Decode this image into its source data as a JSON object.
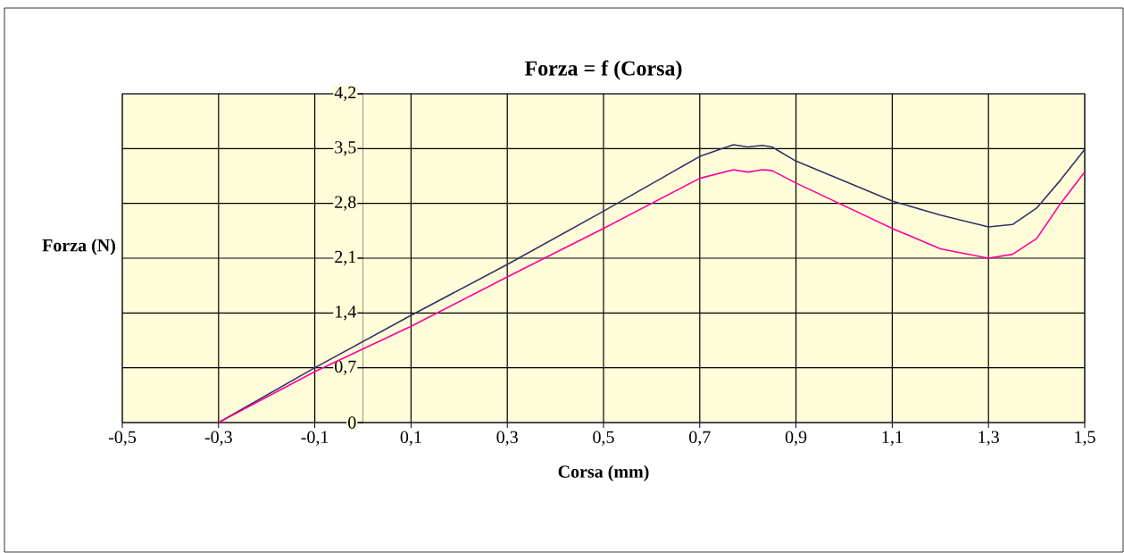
{
  "chart_data": {
    "type": "line",
    "title": "Forza = f (Corsa)",
    "xlabel": "Corsa (mm)",
    "ylabel": "Forza (N)",
    "xlim": [
      -0.5,
      1.5
    ],
    "ylim": [
      0,
      4.2
    ],
    "xticks": [
      {
        "value": -0.5,
        "label": "-0,5"
      },
      {
        "value": -0.3,
        "label": "-0,3"
      },
      {
        "value": -0.1,
        "label": "-0,1"
      },
      {
        "value": 0.1,
        "label": "0,1"
      },
      {
        "value": 0.3,
        "label": "0,3"
      },
      {
        "value": 0.5,
        "label": "0,5"
      },
      {
        "value": 0.7,
        "label": "0,7"
      },
      {
        "value": 0.9,
        "label": "0,9"
      },
      {
        "value": 1.1,
        "label": "1,1"
      },
      {
        "value": 1.3,
        "label": "1,3"
      },
      {
        "value": 1.5,
        "label": "1,5"
      }
    ],
    "yticks": [
      0,
      {
        "value": 0.7,
        "label": "0,7"
      },
      {
        "value": 1.4,
        "label": "1,4"
      },
      {
        "value": 2.1,
        "label": "2,1"
      },
      {
        "value": 2.8,
        "label": "2,8"
      },
      {
        "value": 3.5,
        "label": "3,5"
      },
      {
        "value": 4.2,
        "label": "4,2"
      }
    ],
    "grid": true,
    "marker": "none",
    "line_style": "solid",
    "x": [
      -0.3,
      -0.1,
      0.1,
      0.3,
      0.5,
      0.7,
      0.77,
      0.8,
      0.83,
      0.85,
      0.9,
      1.1,
      1.2,
      1.3,
      1.35,
      1.4,
      1.45,
      1.5
    ],
    "series": [
      {
        "color": "#333366",
        "values": [
          0,
          0.7,
          1.37,
          2.02,
          2.7,
          3.4,
          3.55,
          3.52,
          3.54,
          3.52,
          3.34,
          2.83,
          2.65,
          2.5,
          2.53,
          2.74,
          3.1,
          3.49
        ]
      },
      {
        "color": "#ff0099",
        "values": [
          0,
          0.65,
          1.23,
          1.86,
          2.48,
          3.12,
          3.23,
          3.2,
          3.23,
          3.22,
          3.06,
          2.48,
          2.22,
          2.1,
          2.15,
          2.35,
          2.8,
          3.2
        ]
      }
    ]
  }
}
